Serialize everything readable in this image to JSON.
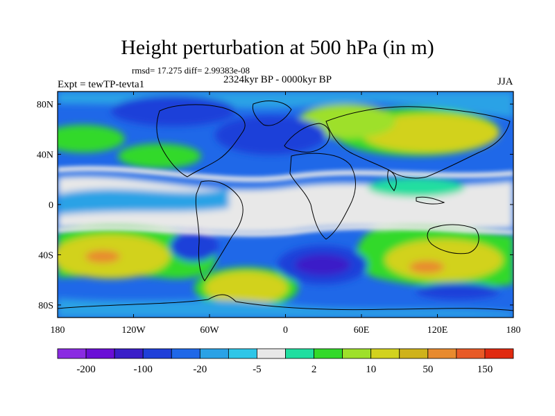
{
  "title": "Height perturbation at 500 hPa (in m)",
  "stats": "rmsd= 17.275 diff= 2.99383e-08",
  "period": "2324kyr BP - 0000kyr BP",
  "experiment": "Expt = tewTP-tevta1",
  "season": "JJA",
  "map": {
    "lat_ticks": [
      "80N",
      "40N",
      "0",
      "40S",
      "80S"
    ],
    "lon_ticks": [
      "180",
      "120W",
      "60W",
      "0",
      "60E",
      "120E",
      "180"
    ],
    "lat_range": [
      -90,
      90
    ],
    "lon_range": [
      -180,
      180
    ]
  },
  "colorbar": {
    "colors": [
      "#8a2be2",
      "#6a0fd6",
      "#3a1ec8",
      "#1f3fd9",
      "#1f68e8",
      "#2aa2e6",
      "#2fc6e8",
      "#e8e8e8",
      "#20dea0",
      "#33d92a",
      "#9ee02a",
      "#d2d21e",
      "#cfb21a",
      "#e88a2e",
      "#e85a26",
      "#e02a10"
    ],
    "labels": [
      "-200",
      "-100",
      "-20",
      "-5",
      "2",
      "10",
      "50",
      "150"
    ]
  }
}
